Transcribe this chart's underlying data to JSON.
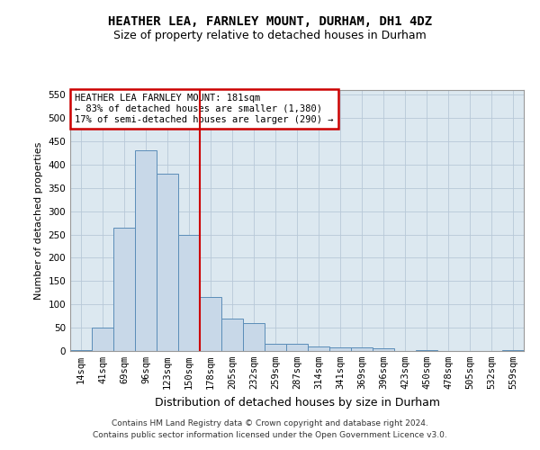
{
  "title": "HEATHER LEA, FARNLEY MOUNT, DURHAM, DH1 4DZ",
  "subtitle": "Size of property relative to detached houses in Durham",
  "xlabel": "Distribution of detached houses by size in Durham",
  "ylabel": "Number of detached properties",
  "footer_line1": "Contains HM Land Registry data © Crown copyright and database right 2024.",
  "footer_line2": "Contains public sector information licensed under the Open Government Licence v3.0.",
  "categories": [
    "14sqm",
    "41sqm",
    "69sqm",
    "96sqm",
    "123sqm",
    "150sqm",
    "178sqm",
    "205sqm",
    "232sqm",
    "259sqm",
    "287sqm",
    "314sqm",
    "341sqm",
    "369sqm",
    "396sqm",
    "423sqm",
    "450sqm",
    "478sqm",
    "505sqm",
    "532sqm",
    "559sqm"
  ],
  "values": [
    2,
    50,
    265,
    430,
    380,
    250,
    115,
    70,
    60,
    15,
    15,
    10,
    7,
    7,
    5,
    0,
    2,
    0,
    0,
    0,
    2
  ],
  "bar_color": "#c8d8e8",
  "bar_edge_color": "#5b8db8",
  "background_color": "#ffffff",
  "plot_bg_color": "#dce8f0",
  "grid_color": "#b8c8d8",
  "annotation_text_line1": "HEATHER LEA FARNLEY MOUNT: 181sqm",
  "annotation_text_line2": "← 83% of detached houses are smaller (1,380)",
  "annotation_text_line3": "17% of semi-detached houses are larger (290) →",
  "vline_position": 5.5,
  "vline_color": "#cc0000",
  "annotation_box_edge_color": "#cc0000",
  "ylim": [
    0,
    560
  ],
  "yticks": [
    0,
    50,
    100,
    150,
    200,
    250,
    300,
    350,
    400,
    450,
    500,
    550
  ],
  "title_fontsize": 10,
  "subtitle_fontsize": 9,
  "ylabel_fontsize": 8,
  "xlabel_fontsize": 9,
  "tick_fontsize": 7.5,
  "annotation_fontsize": 7.5,
  "footer_fontsize": 6.5
}
